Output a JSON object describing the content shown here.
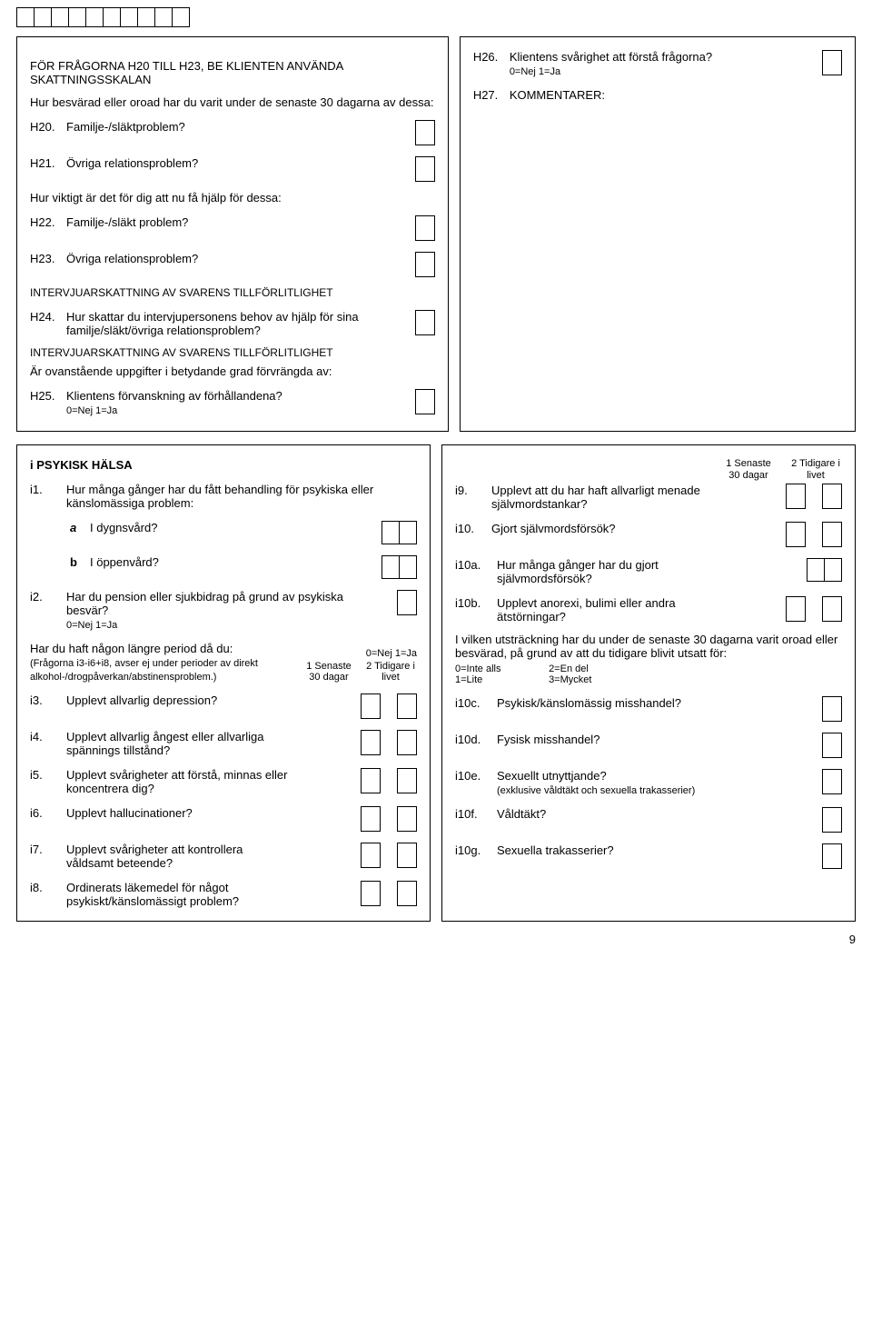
{
  "topBoxCount": 10,
  "leftPanel": {
    "intro1": "FÖR FRÅGORNA H20 TILL H23, BE KLIENTEN ANVÄNDA SKATTNINGSSKALAN",
    "intro2": "Hur besvärad eller oroad har du varit under de senaste 30 dagarna av dessa:",
    "h20": {
      "code": "H20.",
      "text": "Familje-/släktproblem?"
    },
    "h21": {
      "code": "H21.",
      "text": "Övriga relationsproblem?"
    },
    "intro3": "Hur viktigt är det för dig att nu få hjälp för dessa:",
    "h22": {
      "code": "H22.",
      "text": "Familje-/släkt problem?"
    },
    "h23": {
      "code": "H23.",
      "text": "Övriga relationsproblem?"
    },
    "sec1": "INTERVJUARSKATTNING AV SVARENS TILLFÖRLITLIGHET",
    "h24": {
      "code": "H24.",
      "text": "Hur skattar du intervjupersonens behov av hjälp för sina familje/släkt/övriga relationsproblem?"
    },
    "sec2": "INTERVJUARSKATTNING AV SVARENS TILLFÖRLITLIGHET",
    "intro4": "Är ovanstående uppgifter i betydande grad förvrängda av:",
    "h25": {
      "code": "H25.",
      "text": "Klientens förvanskning av förhållandena?",
      "scale": "0=Nej  1=Ja"
    }
  },
  "rightPanel": {
    "h26": {
      "code": "H26.",
      "text": "Klientens svårighet att förstå frågorna?",
      "scale": "0=Nej  1=Ja"
    },
    "h27": {
      "code": "H27.",
      "text": "KOMMENTARER:"
    }
  },
  "bottomLeft": {
    "title": "i PSYKISK HÄLSA",
    "i1": {
      "code": "i1.",
      "text": "Hur många gånger har du fått behandling för psykiska eller känslomässiga problem:"
    },
    "i1a": {
      "label": "a",
      "text": "I dygnsvård?"
    },
    "i1b": {
      "label": "b",
      "text": "I öppenvård?"
    },
    "i2": {
      "code": "i2.",
      "text": "Har du pension eller sjukbidrag på grund av psykiska besvär?",
      "scale": "0=Nej  1=Ja"
    },
    "groupHdr": "Har du haft någon längre period då du:",
    "groupScale": "0=Nej  1=Ja",
    "groupNote": "(Frågorna i3-i6+i8, avser ej under perioder av direkt alkohol-/drogpåverkan/abstinensproblem.)",
    "colHdr1": "1 Senaste 30 dagar",
    "colHdr2": "2 Tidigare i livet",
    "i3": {
      "code": "i3.",
      "text": "Upplevt allvarlig depression?"
    },
    "i4": {
      "code": "i4.",
      "text": "Upplevt allvarlig ångest eller allvarliga spännings tillstånd?"
    },
    "i5": {
      "code": "i5.",
      "text": "Upplevt svårigheter att förstå, minnas eller koncentrera dig?"
    },
    "i6": {
      "code": "i6.",
      "text": "Upplevt hallucinationer?"
    },
    "i7": {
      "code": "i7.",
      "text": "Upplevt svårigheter att kontrollera våldsamt beteende?"
    },
    "i8": {
      "code": "i8.",
      "text": "Ordinerats läkemedel för något psykiskt/känslomässigt problem?"
    }
  },
  "bottomRight": {
    "colHdr1": "1 Senaste 30 dagar",
    "colHdr2": "2 Tidigare i livet",
    "i9": {
      "code": "i9.",
      "text": "Upplevt att du har haft allvarligt menade självmordstankar?"
    },
    "i10": {
      "code": "i10.",
      "text": "Gjort självmordsförsök?"
    },
    "i10a": {
      "code": "i10a.",
      "text": "Hur många gånger har du gjort självmordsförsök?"
    },
    "i10b": {
      "code": "i10b.",
      "text": "Upplevt anorexi, bulimi eller andra ätstörningar?"
    },
    "extentIntro": "I vilken utsträckning har du under de senaste 30 dagarna varit oroad eller besvärad, på grund av att du tidigare blivit utsatt för:",
    "extentScale1": "0=Inte alls",
    "extentScale2": "1=Lite",
    "extentScale3": "2=En del",
    "extentScale4": "3=Mycket",
    "i10c": {
      "code": "i10c.",
      "text": "Psykisk/känslomässig misshandel?"
    },
    "i10d": {
      "code": "i10d.",
      "text": "Fysisk misshandel?"
    },
    "i10e": {
      "code": "i10e.",
      "text": "Sexuellt utnyttjande?",
      "note": "(exklusive våldtäkt och sexuella trakasserier)"
    },
    "i10f": {
      "code": "i10f.",
      "text": "Våldtäkt?"
    },
    "i10g": {
      "code": "i10g.",
      "text": "Sexuella trakasserier?"
    }
  },
  "pageNumber": "9"
}
